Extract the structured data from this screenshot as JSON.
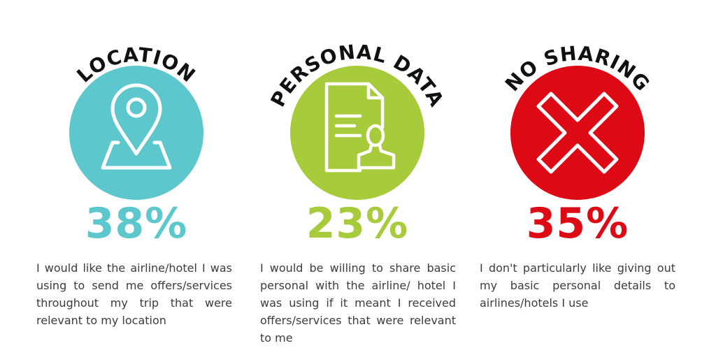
{
  "colors": {
    "location": "#5cc7cc",
    "personal_data": "#a7cb3a",
    "no_sharing": "#dd0a15",
    "title_text": "#111111",
    "body_text": "#3c3c3c"
  },
  "panels": [
    {
      "title": "LOCATION",
      "icon": "location-pin-icon",
      "percent": "38%",
      "description": "I would like the airline/hotel I was using to send me offers/services throughout my trip that were relevant to my location"
    },
    {
      "title": "PERSONAL DATA",
      "icon": "document-user-icon",
      "percent": "23%",
      "description": "I would be willing to share basic personal with the airline/ hotel I was using if it meant I received offers/services that were relevant to me"
    },
    {
      "title": "NO SHARING",
      "icon": "cross-icon",
      "percent": "35%",
      "description": "I don't particularly like giving out my basic personal details to airlines/hotels I use"
    }
  ]
}
